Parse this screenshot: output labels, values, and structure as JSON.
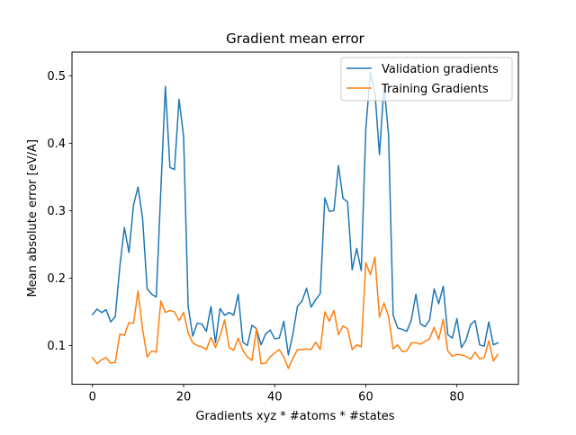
{
  "chart_data": {
    "type": "line",
    "title": "Gradient mean error",
    "xlabel": "Gradients xyz * #atoms * #states",
    "ylabel": "Mean absolute error [eV/A]",
    "xlim": [
      -4.5,
      93.5
    ],
    "ylim": [
      0.0425,
      0.535
    ],
    "xticks": [
      0,
      20,
      40,
      60,
      80
    ],
    "yticks": [
      0.1,
      0.2,
      0.3,
      0.4,
      0.5
    ],
    "xtick_labels": [
      "0",
      "20",
      "40",
      "60",
      "80"
    ],
    "ytick_labels": [
      "0.1",
      "0.2",
      "0.3",
      "0.4",
      "0.5"
    ],
    "legend_position": "top-right",
    "grid": false,
    "x": [
      0,
      1,
      2,
      3,
      4,
      5,
      6,
      7,
      8,
      9,
      10,
      11,
      12,
      13,
      14,
      15,
      16,
      17,
      18,
      19,
      20,
      21,
      22,
      23,
      24,
      25,
      26,
      27,
      28,
      29,
      30,
      31,
      32,
      33,
      34,
      35,
      36,
      37,
      38,
      39,
      40,
      41,
      42,
      43,
      44,
      45,
      46,
      47,
      48,
      49,
      50,
      51,
      52,
      53,
      54,
      55,
      56,
      57,
      58,
      59,
      60,
      61,
      62,
      63,
      64,
      65,
      66,
      67,
      68,
      69,
      70,
      71,
      72,
      73,
      74,
      75,
      76,
      77,
      78,
      79,
      80,
      81,
      82,
      83,
      84,
      85,
      86,
      87,
      88,
      89
    ],
    "series": [
      {
        "name": "Validation gradients",
        "color": "#1f77b4",
        "values": [
          0.146,
          0.154,
          0.149,
          0.153,
          0.135,
          0.143,
          0.217,
          0.275,
          0.238,
          0.308,
          0.335,
          0.288,
          0.184,
          0.176,
          0.172,
          0.33,
          0.484,
          0.364,
          0.361,
          0.465,
          0.41,
          0.158,
          0.114,
          0.133,
          0.132,
          0.121,
          0.158,
          0.104,
          0.155,
          0.145,
          0.149,
          0.145,
          0.176,
          0.105,
          0.1,
          0.13,
          0.125,
          0.101,
          0.117,
          0.123,
          0.11,
          0.111,
          0.136,
          0.086,
          0.117,
          0.158,
          0.166,
          0.185,
          0.157,
          0.168,
          0.177,
          0.319,
          0.299,
          0.3,
          0.367,
          0.318,
          0.313,
          0.212,
          0.244,
          0.211,
          0.421,
          0.505,
          0.476,
          0.383,
          0.486,
          0.412,
          0.145,
          0.126,
          0.124,
          0.121,
          0.138,
          0.176,
          0.132,
          0.128,
          0.138,
          0.184,
          0.162,
          0.188,
          0.116,
          0.111,
          0.14,
          0.097,
          0.108,
          0.131,
          0.137,
          0.101,
          0.099,
          0.135,
          0.101,
          0.104
        ]
      },
      {
        "name": "Training Gradients",
        "color": "#ff7f0e",
        "values": [
          0.082,
          0.073,
          0.079,
          0.082,
          0.074,
          0.075,
          0.117,
          0.115,
          0.134,
          0.133,
          0.181,
          0.124,
          0.083,
          0.092,
          0.09,
          0.166,
          0.149,
          0.152,
          0.15,
          0.137,
          0.149,
          0.119,
          0.104,
          0.1,
          0.098,
          0.094,
          0.112,
          0.097,
          0.114,
          0.138,
          0.097,
          0.093,
          0.111,
          0.093,
          0.083,
          0.078,
          0.125,
          0.073,
          0.074,
          0.083,
          0.089,
          0.094,
          0.083,
          0.066,
          0.081,
          0.094,
          0.094,
          0.095,
          0.094,
          0.105,
          0.094,
          0.15,
          0.136,
          0.152,
          0.116,
          0.129,
          0.125,
          0.094,
          0.101,
          0.098,
          0.223,
          0.205,
          0.231,
          0.142,
          0.163,
          0.143,
          0.095,
          0.101,
          0.091,
          0.092,
          0.104,
          0.104,
          0.102,
          0.106,
          0.11,
          0.127,
          0.109,
          0.139,
          0.092,
          0.084,
          0.087,
          0.086,
          0.084,
          0.08,
          0.09,
          0.08,
          0.082,
          0.107,
          0.077,
          0.087
        ]
      }
    ]
  }
}
